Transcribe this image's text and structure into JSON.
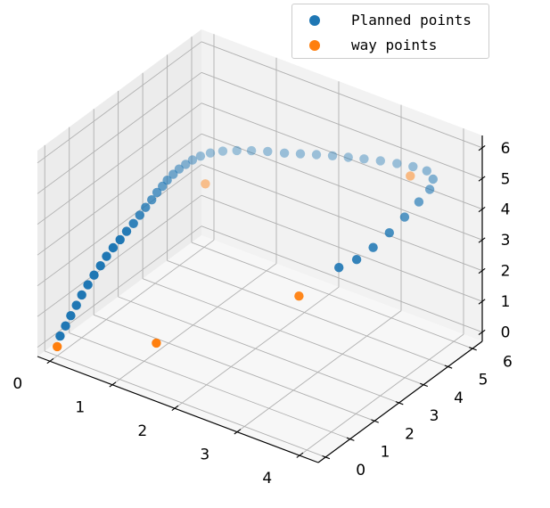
{
  "chart_data": {
    "type": "scatter",
    "projection": "3d",
    "grid": true,
    "legend_placement": "top-right",
    "axes": {
      "x": {
        "ticks": [
          "0",
          "1",
          "2",
          "3",
          "4"
        ],
        "range": [
          -0.2,
          4.3
        ]
      },
      "y": {
        "ticks": [
          "0",
          "1",
          "2",
          "3",
          "4",
          "5",
          "6"
        ],
        "range": [
          -0.3,
          6.4
        ]
      },
      "z": {
        "ticks": [
          "0",
          "1",
          "2",
          "3",
          "4",
          "5",
          "6"
        ],
        "range": [
          -0.3,
          6.4
        ]
      }
    },
    "series": [
      {
        "name": "Planned points",
        "color": "#1f77b4",
        "points": [
          [
            0.03,
            0.04,
            0.34
          ],
          [
            0.07,
            0.16,
            0.63
          ],
          [
            0.11,
            0.27,
            0.93
          ],
          [
            0.15,
            0.4,
            1.22
          ],
          [
            0.18,
            0.54,
            1.5
          ],
          [
            0.22,
            0.69,
            1.77
          ],
          [
            0.26,
            0.84,
            2.03
          ],
          [
            0.3,
            1.0,
            2.27
          ],
          [
            0.33,
            1.17,
            2.5
          ],
          [
            0.37,
            1.34,
            2.71
          ],
          [
            0.41,
            1.52,
            2.9
          ],
          [
            0.44,
            1.71,
            3.08
          ],
          [
            0.48,
            1.89,
            3.26
          ],
          [
            0.51,
            2.07,
            3.45
          ],
          [
            0.54,
            2.23,
            3.63
          ],
          [
            0.58,
            2.38,
            3.82
          ],
          [
            0.61,
            2.52,
            4.0
          ],
          [
            0.65,
            2.64,
            4.16
          ],
          [
            0.68,
            2.76,
            4.31
          ],
          [
            0.72,
            2.9,
            4.45
          ],
          [
            0.76,
            3.04,
            4.57
          ],
          [
            0.81,
            3.18,
            4.68
          ],
          [
            0.86,
            3.33,
            4.77
          ],
          [
            0.93,
            3.48,
            4.86
          ],
          [
            1.03,
            3.63,
            4.95
          ],
          [
            1.17,
            3.78,
            5.03
          ],
          [
            1.34,
            3.92,
            5.1
          ],
          [
            1.52,
            4.06,
            5.15
          ],
          [
            1.72,
            4.21,
            5.19
          ],
          [
            1.93,
            4.36,
            5.21
          ],
          [
            2.12,
            4.53,
            5.23
          ],
          [
            2.31,
            4.7,
            5.25
          ],
          [
            2.5,
            4.87,
            5.26
          ],
          [
            2.69,
            5.03,
            5.26
          ],
          [
            2.88,
            5.19,
            5.26
          ],
          [
            3.08,
            5.35,
            5.26
          ],
          [
            3.29,
            5.49,
            5.25
          ],
          [
            3.5,
            5.61,
            5.24
          ],
          [
            3.69,
            5.69,
            5.2
          ],
          [
            3.81,
            5.64,
            5.05
          ],
          [
            3.82,
            5.48,
            4.82
          ],
          [
            3.74,
            5.24,
            4.49
          ],
          [
            3.62,
            4.96,
            4.07
          ],
          [
            3.49,
            4.67,
            3.63
          ],
          [
            3.34,
            4.39,
            3.2
          ],
          [
            3.17,
            4.15,
            2.82
          ],
          [
            2.96,
            3.96,
            2.51
          ]
        ]
      },
      {
        "name": "way points",
        "color": "#ff7f0e",
        "points": [
          [
            0.0,
            0.0,
            0.0
          ],
          [
            1.0,
            1.5,
            0.0
          ],
          [
            1.0,
            3.5,
            4.0
          ],
          [
            3.5,
            5.5,
            5.0
          ],
          [
            2.5,
            3.5,
            1.5
          ]
        ]
      }
    ]
  }
}
